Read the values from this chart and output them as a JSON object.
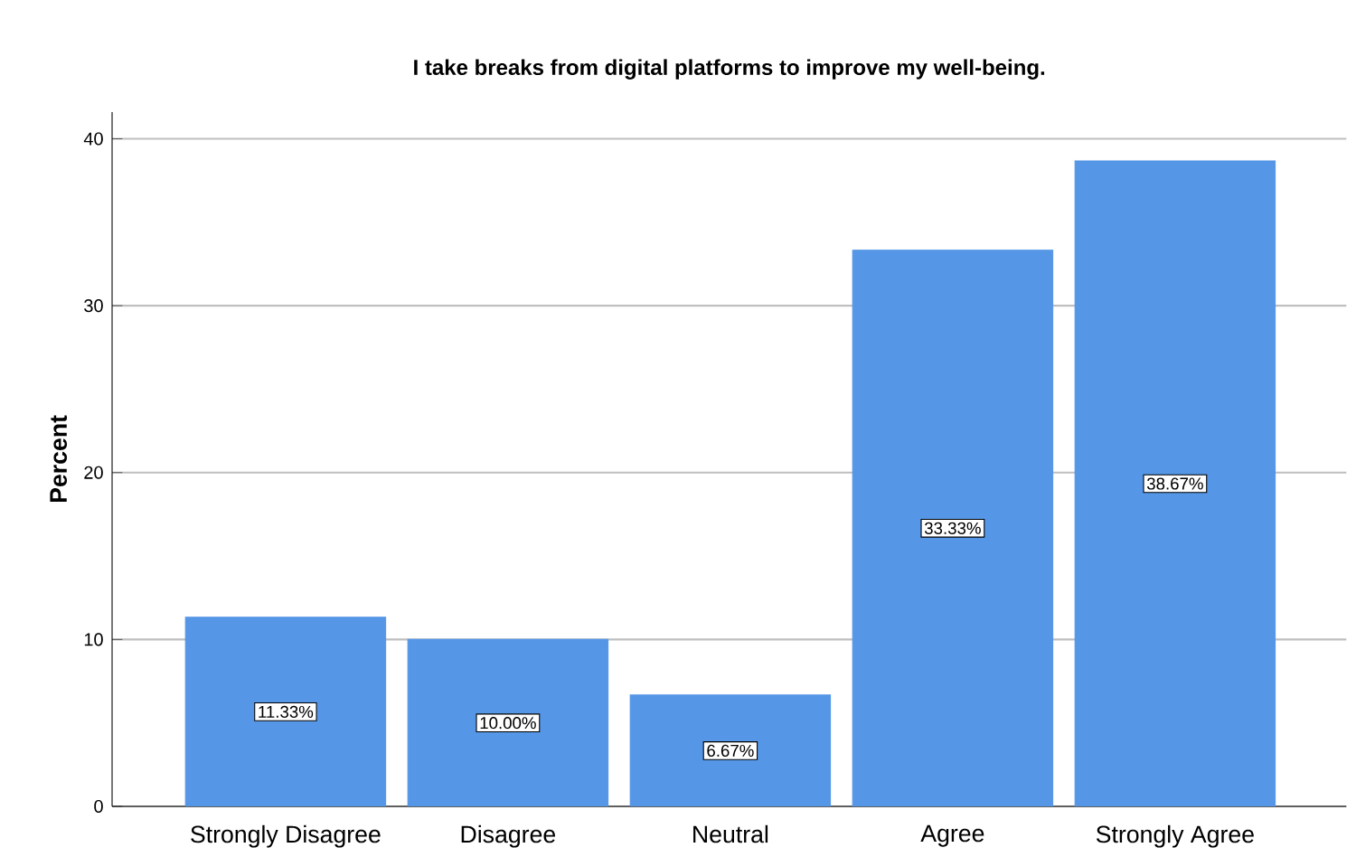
{
  "chart_data": {
    "type": "bar",
    "title": "I take breaks from digital platforms to improve my well-being.",
    "ylabel": "Percent",
    "categories": [
      "Strongly Disagree",
      "Disagree",
      "Neutral",
      "Agree",
      "Strongly Agree"
    ],
    "values": [
      11.33,
      10.0,
      6.67,
      33.33,
      38.67
    ],
    "value_labels": [
      "11.33%",
      "10.00%",
      "6.67%",
      "33.33%",
      "38.67%"
    ],
    "color": "#5596e6",
    "ylim": [
      0,
      41.6
    ],
    "yticks": [
      0,
      10,
      20,
      30,
      40
    ],
    "grid": "y"
  }
}
